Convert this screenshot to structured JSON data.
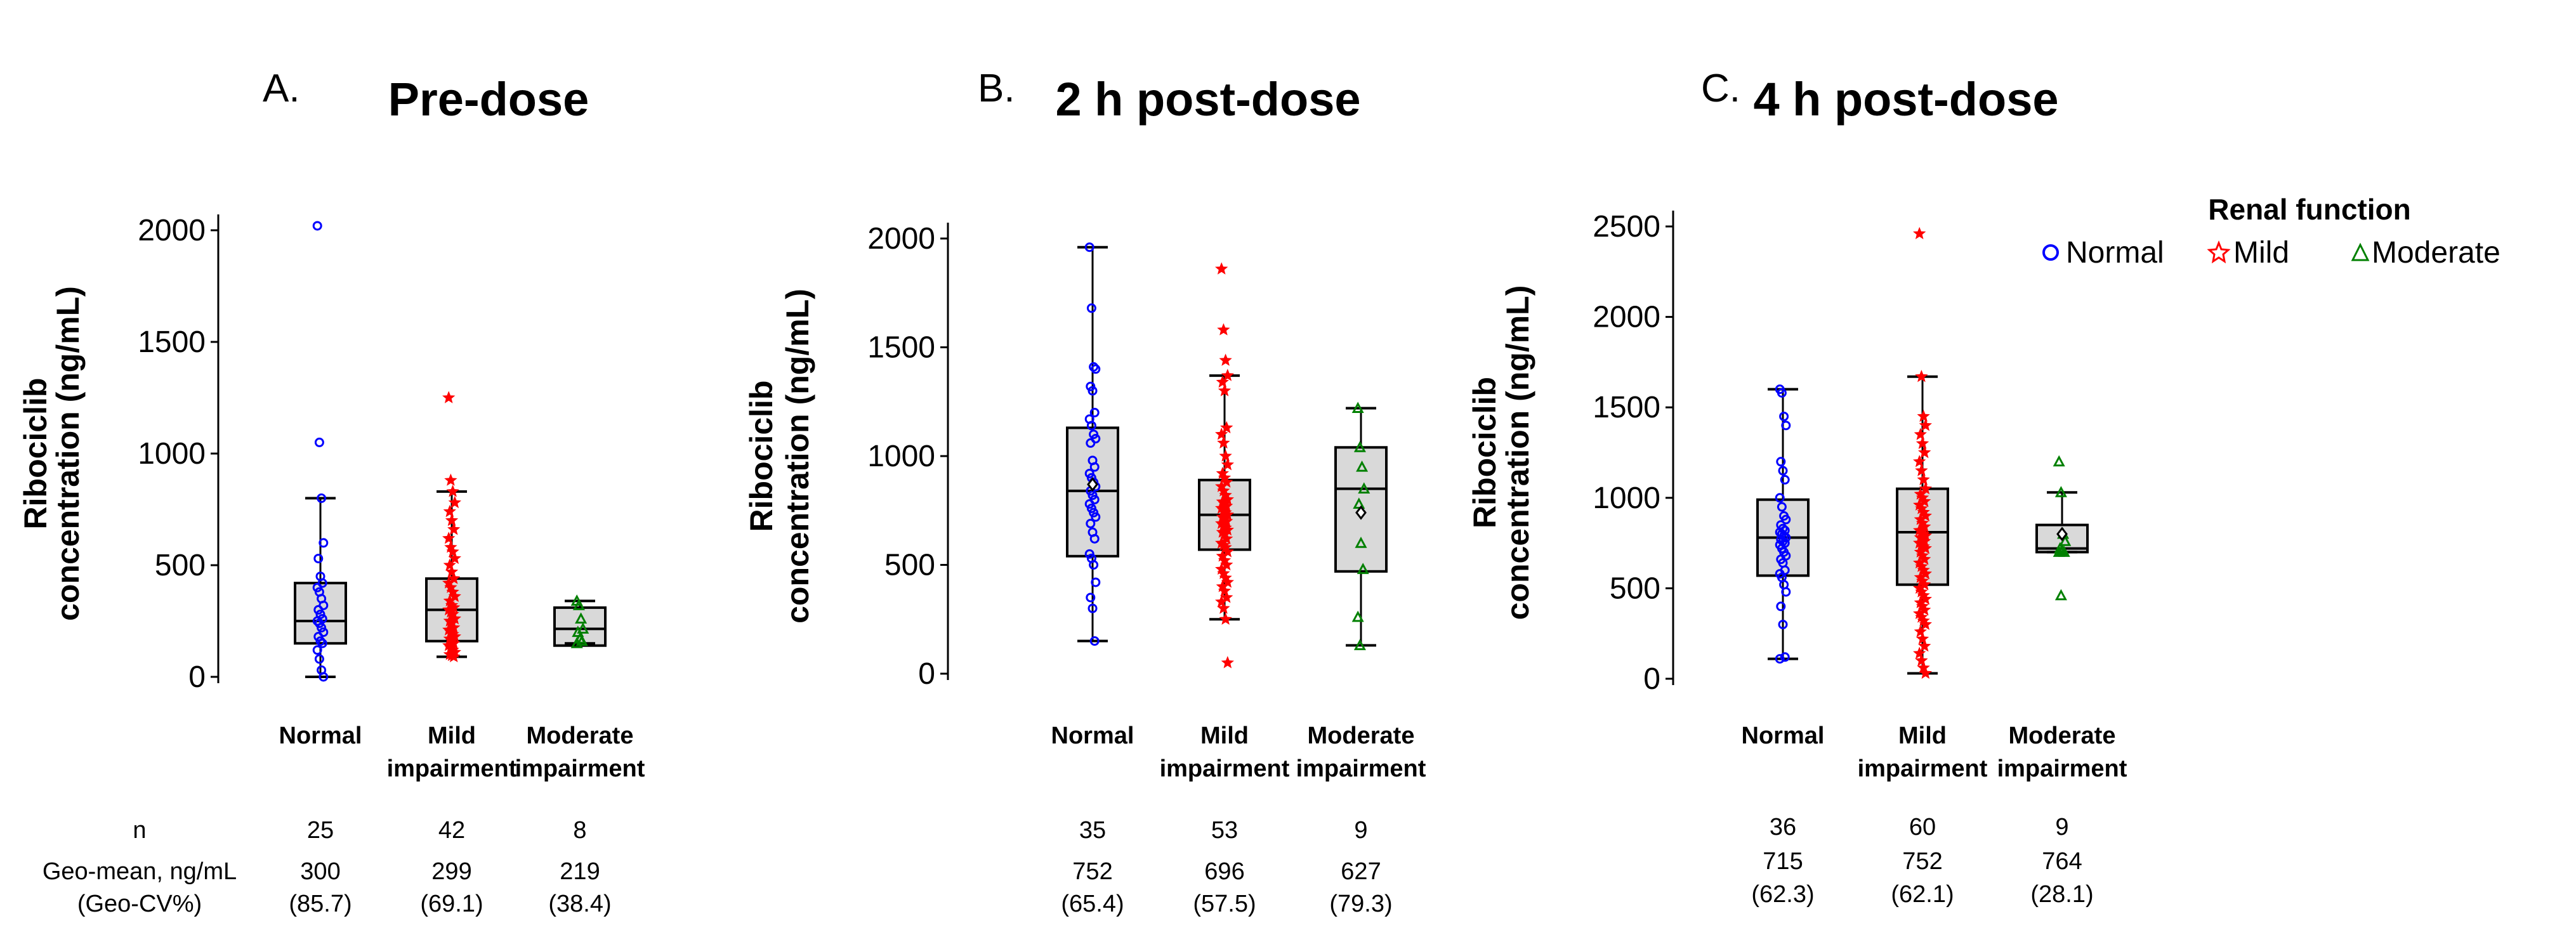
{
  "colors": {
    "normal": "#0000ff",
    "mild": "#ff0000",
    "moderate": "#008000",
    "box_fill": "#d9d9d9"
  },
  "legend": {
    "title": "Renal function",
    "items": [
      {
        "label": "Normal",
        "marker": "open-circle"
      },
      {
        "label": "Mild",
        "marker": "open-star"
      },
      {
        "label": "Moderate",
        "marker": "open-triangle"
      }
    ]
  },
  "table_labels": [
    "n",
    "Geo-mean, ng/mL",
    "(Geo-CV%)"
  ],
  "chart_data": [
    {
      "type": "box",
      "panel": "A.",
      "title": "Pre-dose",
      "ylabel_lines": [
        "Ribociclib",
        "concentration (ng/mL)"
      ],
      "ylim": [
        0,
        2000
      ],
      "yticks": [
        0,
        500,
        1000,
        1500,
        2000
      ],
      "categories": [
        [
          "Normal"
        ],
        [
          "Mild",
          "impairment"
        ],
        [
          "Moderate",
          "impairment"
        ]
      ],
      "groups": [
        {
          "name": "Normal",
          "whisker": [
            0,
            800
          ],
          "q1": 150,
          "median": 250,
          "q3": 420,
          "points": [
            2020,
            1050,
            800,
            600,
            530,
            450,
            420,
            400,
            380,
            350,
            320,
            300,
            280,
            260,
            250,
            240,
            220,
            200,
            180,
            160,
            150,
            120,
            80,
            30,
            0
          ],
          "n": "25",
          "geomean": "300",
          "geocv": "(85.7)"
        },
        {
          "name": "Mild",
          "whisker": [
            90,
            830
          ],
          "q1": 160,
          "median": 300,
          "q3": 440,
          "points": [
            1250,
            880,
            830,
            780,
            740,
            700,
            660,
            620,
            580,
            560,
            530,
            500,
            470,
            440,
            420,
            400,
            380,
            360,
            340,
            320,
            310,
            300,
            290,
            280,
            260,
            250,
            240,
            220,
            210,
            200,
            190,
            180,
            170,
            160,
            150,
            140,
            130,
            120,
            110,
            100,
            95,
            90
          ],
          "n": "42",
          "geomean": "299",
          "geocv": "(69.1)"
        },
        {
          "name": "Moderate",
          "whisker": [
            150,
            340
          ],
          "q1": 140,
          "median": 215,
          "q3": 310,
          "points": [
            340,
            320,
            260,
            215,
            200,
            170,
            160,
            150
          ],
          "n": "8",
          "geomean": "219",
          "geocv": "(38.4)"
        }
      ]
    },
    {
      "type": "box",
      "panel": "B.",
      "title": "2 h post-dose",
      "ylabel_lines": [
        "Ribociclib",
        "concentration (ng/mL)"
      ],
      "ylim": [
        0,
        2000
      ],
      "yticks": [
        0,
        500,
        1000,
        1500,
        2000
      ],
      "categories": [
        [
          "Normal"
        ],
        [
          "Mild",
          "impairment"
        ],
        [
          "Moderate",
          "impairment"
        ]
      ],
      "groups": [
        {
          "name": "Normal",
          "whisker": [
            150,
            1960
          ],
          "q1": 540,
          "median": 840,
          "q3": 1130,
          "mean": 870,
          "points": [
            1960,
            1680,
            1410,
            1400,
            1320,
            1300,
            1200,
            1170,
            1140,
            1100,
            1080,
            1060,
            980,
            950,
            920,
            900,
            880,
            860,
            840,
            820,
            800,
            780,
            760,
            740,
            720,
            690,
            650,
            620,
            550,
            530,
            500,
            420,
            350,
            300,
            150
          ],
          "n": "35",
          "geomean": "752",
          "geocv": "(65.4)"
        },
        {
          "name": "Mild",
          "whisker": [
            250,
            1370
          ],
          "q1": 570,
          "median": 730,
          "q3": 890,
          "points": [
            1860,
            1580,
            1440,
            1370,
            1340,
            1300,
            1130,
            1100,
            1060,
            1000,
            960,
            920,
            900,
            880,
            860,
            840,
            820,
            800,
            790,
            780,
            770,
            760,
            750,
            740,
            730,
            720,
            710,
            700,
            690,
            680,
            670,
            660,
            650,
            640,
            620,
            600,
            590,
            580,
            560,
            540,
            520,
            500,
            480,
            460,
            440,
            420,
            400,
            380,
            350,
            330,
            300,
            250,
            50
          ],
          "n": "53",
          "geomean": "696",
          "geocv": "(57.5)"
        },
        {
          "name": "Moderate",
          "whisker": [
            130,
            1220
          ],
          "q1": 470,
          "median": 850,
          "q3": 1040,
          "mean": 740,
          "points": [
            1220,
            1040,
            950,
            850,
            780,
            600,
            480,
            260,
            130
          ],
          "n": "9",
          "geomean": "627",
          "geocv": "(79.3)"
        }
      ]
    },
    {
      "type": "box",
      "panel": "C.",
      "title": "4 h post-dose",
      "ylabel_lines": [
        "Ribociclib",
        "concentration (ng/mL)"
      ],
      "ylim": [
        0,
        2500
      ],
      "yticks": [
        0,
        500,
        1000,
        1500,
        2000,
        2500
      ],
      "categories": [
        [
          "Normal"
        ],
        [
          "Mild",
          "impairment"
        ],
        [
          "Moderate",
          "impairment"
        ]
      ],
      "groups": [
        {
          "name": "Normal",
          "whisker": [
            110,
            1600
          ],
          "q1": 570,
          "median": 780,
          "q3": 990,
          "points": [
            1600,
            1580,
            1450,
            1400,
            1200,
            1150,
            1100,
            1000,
            950,
            900,
            880,
            850,
            830,
            820,
            810,
            800,
            790,
            780,
            770,
            760,
            750,
            740,
            720,
            700,
            680,
            660,
            640,
            600,
            580,
            560,
            520,
            480,
            400,
            300,
            120,
            110
          ],
          "n": "36",
          "geomean": "715",
          "geocv": "(62.3)"
        },
        {
          "name": "Mild",
          "whisker": [
            30,
            1670
          ],
          "q1": 520,
          "median": 810,
          "q3": 1050,
          "points": [
            2460,
            1670,
            1450,
            1400,
            1350,
            1300,
            1250,
            1200,
            1150,
            1100,
            1050,
            1020,
            1000,
            980,
            960,
            940,
            920,
            900,
            880,
            860,
            840,
            820,
            810,
            800,
            790,
            780,
            770,
            760,
            750,
            740,
            730,
            720,
            700,
            680,
            660,
            640,
            620,
            600,
            580,
            560,
            540,
            520,
            500,
            480,
            460,
            440,
            420,
            400,
            380,
            360,
            340,
            320,
            300,
            260,
            220,
            180,
            140,
            100,
            60,
            30
          ],
          "n": "60",
          "geomean": "752",
          "geocv": "(62.1)"
        },
        {
          "name": "Moderate",
          "whisker": [
            700,
            1030
          ],
          "q1": 700,
          "median": 720,
          "q3": 850,
          "mean": 800,
          "points": [
            1200,
            1030,
            800,
            760,
            720,
            710,
            700,
            700,
            460
          ],
          "n": "9",
          "geomean": "764",
          "geocv": "(28.1)"
        }
      ]
    }
  ]
}
